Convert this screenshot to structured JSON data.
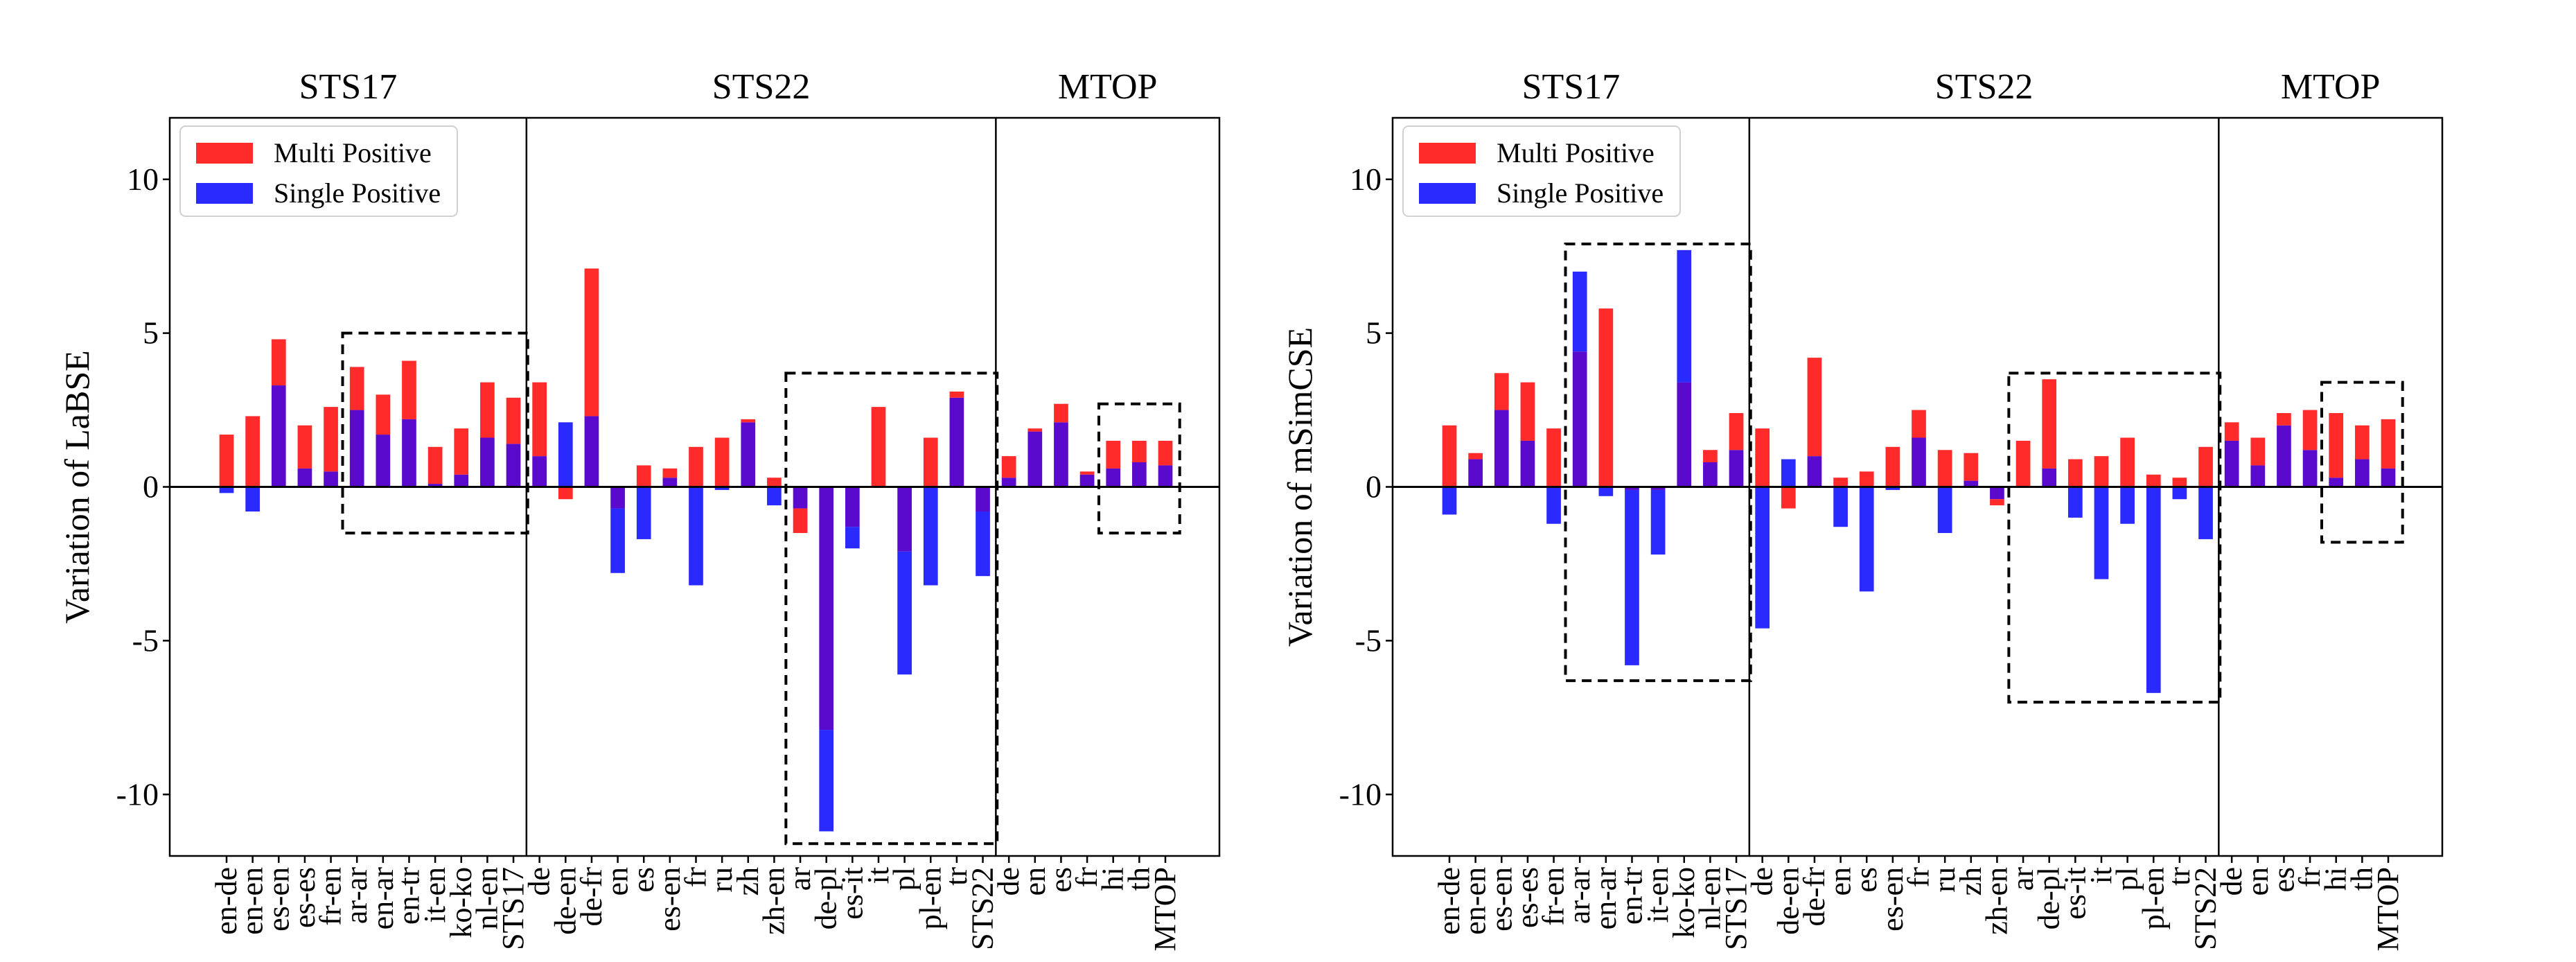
{
  "chart_data": [
    {
      "type": "bar",
      "ylabel": "Variation of LaBSE",
      "ylim": [
        -12,
        12
      ],
      "yticks": [
        10,
        5,
        0,
        -5,
        -10
      ],
      "ytick_labels": [
        "10",
        "5",
        "0",
        "-5",
        "-10"
      ],
      "legend": [
        "Multi Positive",
        "Single Positive"
      ],
      "legend_position": "upper-left",
      "colors": {
        "multi": "#ff2a2a",
        "single": "#2a2aff",
        "overlap": "#5a0acd"
      },
      "groups": [
        {
          "label": "STS17",
          "categories": [
            "en-de",
            "en-en",
            "es-en",
            "es-es",
            "fr-en",
            "ar-ar",
            "en-ar",
            "en-tr",
            "it-en",
            "ko-ko",
            "nl-en",
            "STS17"
          ]
        },
        {
          "label": "STS22",
          "categories": [
            "de",
            "de-en",
            "de-fr",
            "en",
            "es",
            "es-en",
            "fr",
            "ru",
            "zh",
            "zh-en",
            "ar",
            "de-pl",
            "es-it",
            "it",
            "pl",
            "pl-en",
            "tr",
            "STS22"
          ]
        },
        {
          "label": "MTOP",
          "categories": [
            "de",
            "en",
            "es",
            "fr",
            "hi",
            "th",
            "MTOP"
          ]
        }
      ],
      "series": [
        {
          "name": "Multi Positive",
          "values": [
            1.7,
            2.3,
            4.8,
            2.0,
            2.6,
            3.9,
            3.0,
            4.1,
            1.3,
            1.9,
            3.4,
            2.9,
            3.4,
            -0.4,
            7.1,
            -0.7,
            0.7,
            0.6,
            1.3,
            1.6,
            2.2,
            0.3,
            -1.5,
            -7.9,
            -1.3,
            2.6,
            -2.1,
            1.6,
            3.1,
            -0.8,
            1.0,
            1.9,
            2.7,
            0.5,
            1.5,
            1.5,
            1.5
          ]
        },
        {
          "name": "Single Positive",
          "values": [
            -0.2,
            -0.8,
            3.3,
            0.6,
            0.5,
            2.5,
            1.7,
            2.2,
            0.1,
            0.4,
            1.6,
            1.4,
            1.0,
            2.1,
            2.3,
            -2.8,
            -1.7,
            0.3,
            -3.2,
            -0.1,
            2.1,
            -0.6,
            -0.7,
            -11.2,
            -2.0,
            0.0,
            -6.1,
            -3.2,
            2.9,
            -2.9,
            0.3,
            1.8,
            2.1,
            0.4,
            0.6,
            0.8,
            0.7
          ]
        }
      ],
      "highlight_boxes": [
        {
          "from": "ar-ar",
          "to": "STS17",
          "ymin": -1.5,
          "ymax": 5.0
        },
        {
          "from": "ar",
          "to": "STS22",
          "ymin": -11.6,
          "ymax": 3.7
        },
        {
          "from": "hi",
          "to": "MTOP",
          "ymin": -1.5,
          "ymax": 2.7
        }
      ]
    },
    {
      "type": "bar",
      "ylabel": "Variation of mSimCSE",
      "ylim": [
        -12,
        12
      ],
      "yticks": [
        10,
        5,
        0,
        -5,
        -10
      ],
      "ytick_labels": [
        "10",
        "5",
        "0",
        "-5",
        "-10"
      ],
      "legend": [
        "Multi Positive",
        "Single Positive"
      ],
      "legend_position": "upper-left",
      "colors": {
        "multi": "#ff2a2a",
        "single": "#2a2aff",
        "overlap": "#5a0acd"
      },
      "groups": [
        {
          "label": "STS17",
          "categories": [
            "en-de",
            "en-en",
            "es-en",
            "es-es",
            "fr-en",
            "ar-ar",
            "en-ar",
            "en-tr",
            "it-en",
            "ko-ko",
            "nl-en",
            "STS17"
          ]
        },
        {
          "label": "STS22",
          "categories": [
            "de",
            "de-en",
            "de-fr",
            "en",
            "es",
            "es-en",
            "fr",
            "ru",
            "zh",
            "zh-en",
            "ar",
            "de-pl",
            "es-it",
            "it",
            "pl",
            "pl-en",
            "tr",
            "STS22"
          ]
        },
        {
          "label": "MTOP",
          "categories": [
            "de",
            "en",
            "es",
            "fr",
            "hi",
            "th",
            "MTOP"
          ]
        }
      ],
      "series": [
        {
          "name": "Multi Positive",
          "values": [
            2.0,
            1.1,
            3.7,
            3.4,
            1.9,
            4.4,
            5.8,
            -0.1,
            -0.1,
            3.4,
            1.2,
            2.4,
            1.9,
            -0.7,
            4.2,
            0.3,
            0.5,
            1.3,
            2.5,
            1.2,
            1.1,
            -0.6,
            1.5,
            3.5,
            0.9,
            1.0,
            1.6,
            0.4,
            0.3,
            1.3,
            2.1,
            1.6,
            2.4,
            2.5,
            2.4,
            2.0,
            2.2
          ]
        },
        {
          "name": "Single Positive",
          "values": [
            -0.9,
            0.9,
            2.5,
            1.5,
            -1.2,
            7.0,
            -0.3,
            -5.8,
            -2.2,
            7.7,
            0.8,
            1.2,
            -4.6,
            0.9,
            1.0,
            -1.3,
            -3.4,
            -0.1,
            1.6,
            -1.5,
            0.2,
            -0.4,
            0.0,
            0.6,
            -1.0,
            -3.0,
            -1.2,
            -6.7,
            -0.4,
            -1.7,
            1.5,
            0.7,
            2.0,
            1.2,
            0.3,
            0.9,
            0.6
          ]
        }
      ],
      "highlight_boxes": [
        {
          "from": "ar-ar",
          "to": "STS17",
          "ymin": -6.3,
          "ymax": 7.9
        },
        {
          "from": "ar",
          "to": "STS22",
          "ymin": -7.0,
          "ymax": 3.7
        },
        {
          "from": "hi",
          "to": "MTOP",
          "ymin": -1.8,
          "ymax": 3.4
        }
      ]
    }
  ]
}
